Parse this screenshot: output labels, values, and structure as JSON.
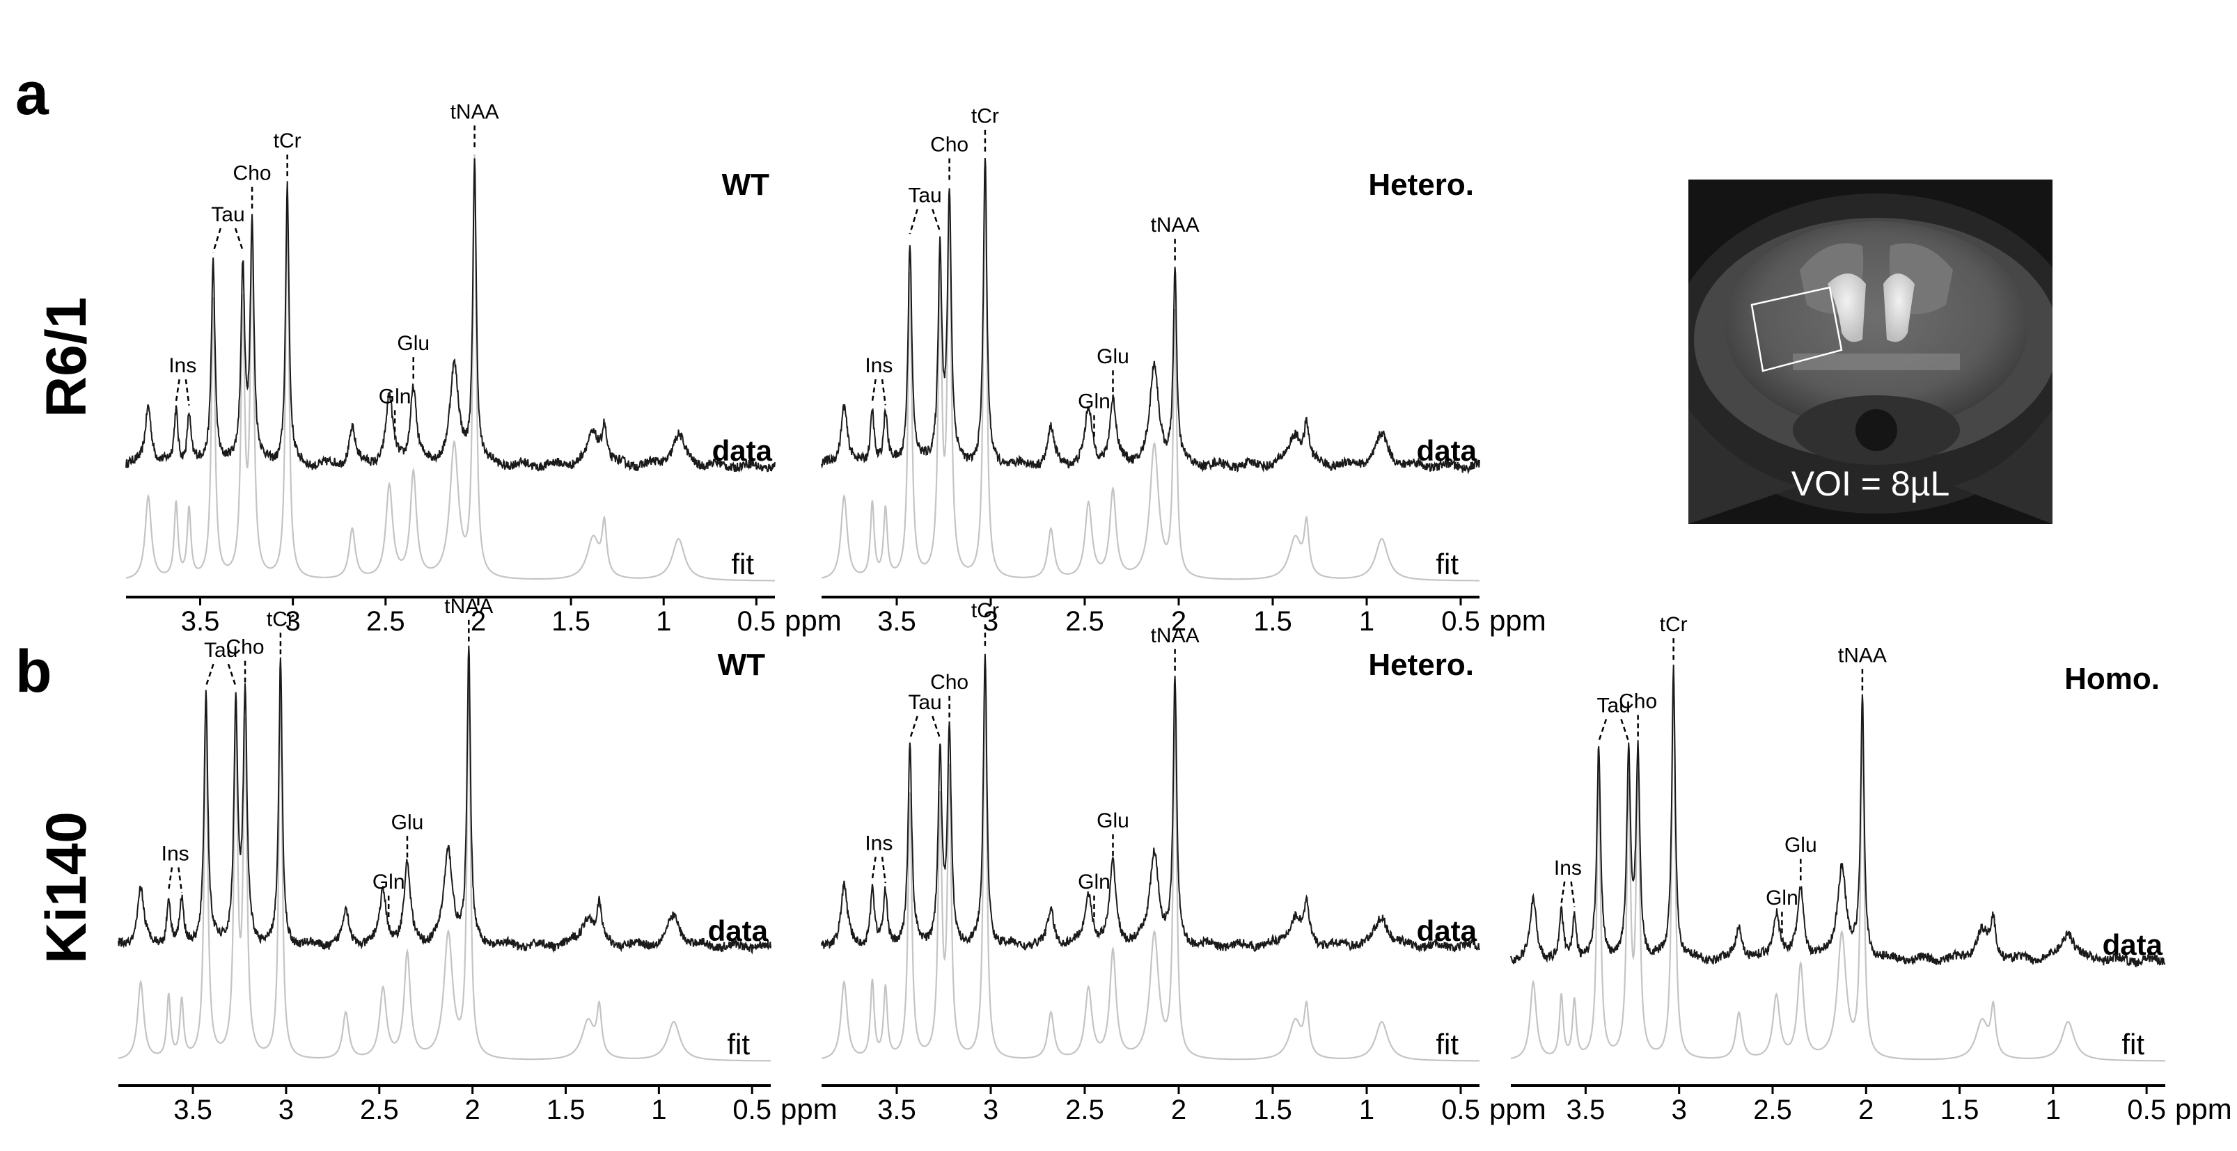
{
  "rows": [
    {
      "letter": "a",
      "label": "R6/1"
    },
    {
      "letter": "b",
      "label": "Ki140"
    }
  ],
  "mri": {
    "voi_label": "VOI = 8µL"
  },
  "chart_data": [
    {
      "type": "line",
      "row": "R6/1",
      "group": "WT",
      "xlabel": "ppm",
      "xlim": [
        3.9,
        0.4
      ],
      "x_reversed": true,
      "ticks": [
        3.5,
        3,
        2.5,
        2,
        1.5,
        1,
        0.5
      ],
      "tick_labels": [
        "3.5",
        "3",
        "2.5",
        "2",
        "1.5",
        "1",
        "0.5"
      ],
      "series": [
        {
          "name": "data"
        },
        {
          "name": "fit"
        }
      ],
      "peaks": [
        {
          "label": "Ins",
          "ppm": [
            3.63,
            3.56
          ],
          "height": 0.3
        },
        {
          "label": "Tau",
          "ppm": [
            3.43,
            3.27
          ],
          "height": 0.67
        },
        {
          "label": "Cho",
          "ppm": [
            3.22
          ],
          "height": 0.78
        },
        {
          "label": "tCr",
          "ppm": [
            3.03
          ],
          "height": 0.92
        },
        {
          "label": "Gln",
          "ppm": [
            2.45
          ],
          "height": 0.37
        },
        {
          "label": "Glu",
          "ppm": [
            2.35
          ],
          "height": 0.42
        },
        {
          "label": "tNAA",
          "ppm": [
            2.02
          ],
          "height": 1.0
        }
      ]
    },
    {
      "type": "line",
      "row": "R6/1",
      "group": "Hetero.",
      "xlabel": "ppm",
      "xlim": [
        3.9,
        0.4
      ],
      "x_reversed": true,
      "ticks": [
        3.5,
        3,
        2.5,
        2,
        1.5,
        1,
        0.5
      ],
      "tick_labels": [
        "3.5",
        "3",
        "2.5",
        "2",
        "1.5",
        "1",
        "0.5"
      ],
      "series": [
        {
          "name": "data"
        },
        {
          "name": "fit"
        }
      ],
      "peaks": [
        {
          "label": "Ins",
          "ppm": [
            3.63,
            3.56
          ],
          "height": 0.3
        },
        {
          "label": "Tau",
          "ppm": [
            3.43,
            3.27
          ],
          "height": 0.73
        },
        {
          "label": "Cho",
          "ppm": [
            3.22
          ],
          "height": 0.87
        },
        {
          "label": "tCr",
          "ppm": [
            3.03
          ],
          "height": 1.0
        },
        {
          "label": "Gln",
          "ppm": [
            2.45
          ],
          "height": 0.3
        },
        {
          "label": "Glu",
          "ppm": [
            2.35
          ],
          "height": 0.35
        },
        {
          "label": "tNAA",
          "ppm": [
            2.02
          ],
          "height": 0.63
        }
      ]
    },
    {
      "type": "line",
      "row": "Ki140",
      "group": "WT",
      "xlabel": "ppm",
      "xlim": [
        3.9,
        0.4
      ],
      "x_reversed": true,
      "ticks": [
        3.5,
        3,
        2.5,
        2,
        1.5,
        1,
        0.5
      ],
      "tick_labels": [
        "3.5",
        "3",
        "2.5",
        "2",
        "1.5",
        "1",
        "0.5"
      ],
      "series": [
        {
          "name": "data"
        },
        {
          "name": "fit"
        }
      ],
      "peaks": [
        {
          "label": "Ins",
          "ppm": [
            3.63,
            3.56
          ],
          "height": 0.27
        },
        {
          "label": "Tau",
          "ppm": [
            3.43,
            3.27
          ],
          "height": 0.86
        },
        {
          "label": "Cho",
          "ppm": [
            3.22
          ],
          "height": 0.83
        },
        {
          "label": "tCr",
          "ppm": [
            3.03
          ],
          "height": 0.97
        },
        {
          "label": "Gln",
          "ppm": [
            2.45
          ],
          "height": 0.3
        },
        {
          "label": "Glu",
          "ppm": [
            2.35
          ],
          "height": 0.45
        },
        {
          "label": "tNAA",
          "ppm": [
            2.02
          ],
          "height": 1.0
        }
      ]
    },
    {
      "type": "line",
      "row": "Ki140",
      "group": "Hetero.",
      "xlabel": "ppm",
      "xlim": [
        3.9,
        0.4
      ],
      "x_reversed": true,
      "ticks": [
        3.5,
        3,
        2.5,
        2,
        1.5,
        1,
        0.5
      ],
      "tick_labels": [
        "3.5",
        "3",
        "2.5",
        "2",
        "1.5",
        "1",
        "0.5"
      ],
      "series": [
        {
          "name": "data"
        },
        {
          "name": "fit"
        }
      ],
      "peaks": [
        {
          "label": "Ins",
          "ppm": [
            3.63,
            3.56
          ],
          "height": 0.33
        },
        {
          "label": "Tau",
          "ppm": [
            3.43,
            3.27
          ],
          "height": 0.68
        },
        {
          "label": "Cho",
          "ppm": [
            3.22
          ],
          "height": 0.72
        },
        {
          "label": "tCr",
          "ppm": [
            3.03
          ],
          "height": 1.0
        },
        {
          "label": "Gln",
          "ppm": [
            2.45
          ],
          "height": 0.3
        },
        {
          "label": "Glu",
          "ppm": [
            2.35
          ],
          "height": 0.46
        },
        {
          "label": "tNAA",
          "ppm": [
            2.02
          ],
          "height": 0.9
        }
      ]
    },
    {
      "type": "line",
      "row": "Ki140",
      "group": "Homo.",
      "xlabel": "ppm",
      "xlim": [
        3.9,
        0.4
      ],
      "x_reversed": true,
      "ticks": [
        3.5,
        3,
        2.5,
        2,
        1.5,
        1,
        0.5
      ],
      "tick_labels": [
        "3.5",
        "3",
        "2.5",
        "2",
        "1.5",
        "1",
        "0.5"
      ],
      "series": [
        {
          "name": "data"
        },
        {
          "name": "fit"
        }
      ],
      "peaks": [
        {
          "label": "Ins",
          "ppm": [
            3.63,
            3.56
          ],
          "height": 0.27
        },
        {
          "label": "Tau",
          "ppm": [
            3.43,
            3.27
          ],
          "height": 0.72
        },
        {
          "label": "Cho",
          "ppm": [
            3.22
          ],
          "height": 0.7
        },
        {
          "label": "tCr",
          "ppm": [
            3.03
          ],
          "height": 1.0
        },
        {
          "label": "Gln",
          "ppm": [
            2.45
          ],
          "height": 0.27
        },
        {
          "label": "Glu",
          "ppm": [
            2.35
          ],
          "height": 0.4
        },
        {
          "label": "tNAA",
          "ppm": [
            2.02
          ],
          "height": 0.88
        }
      ]
    }
  ]
}
